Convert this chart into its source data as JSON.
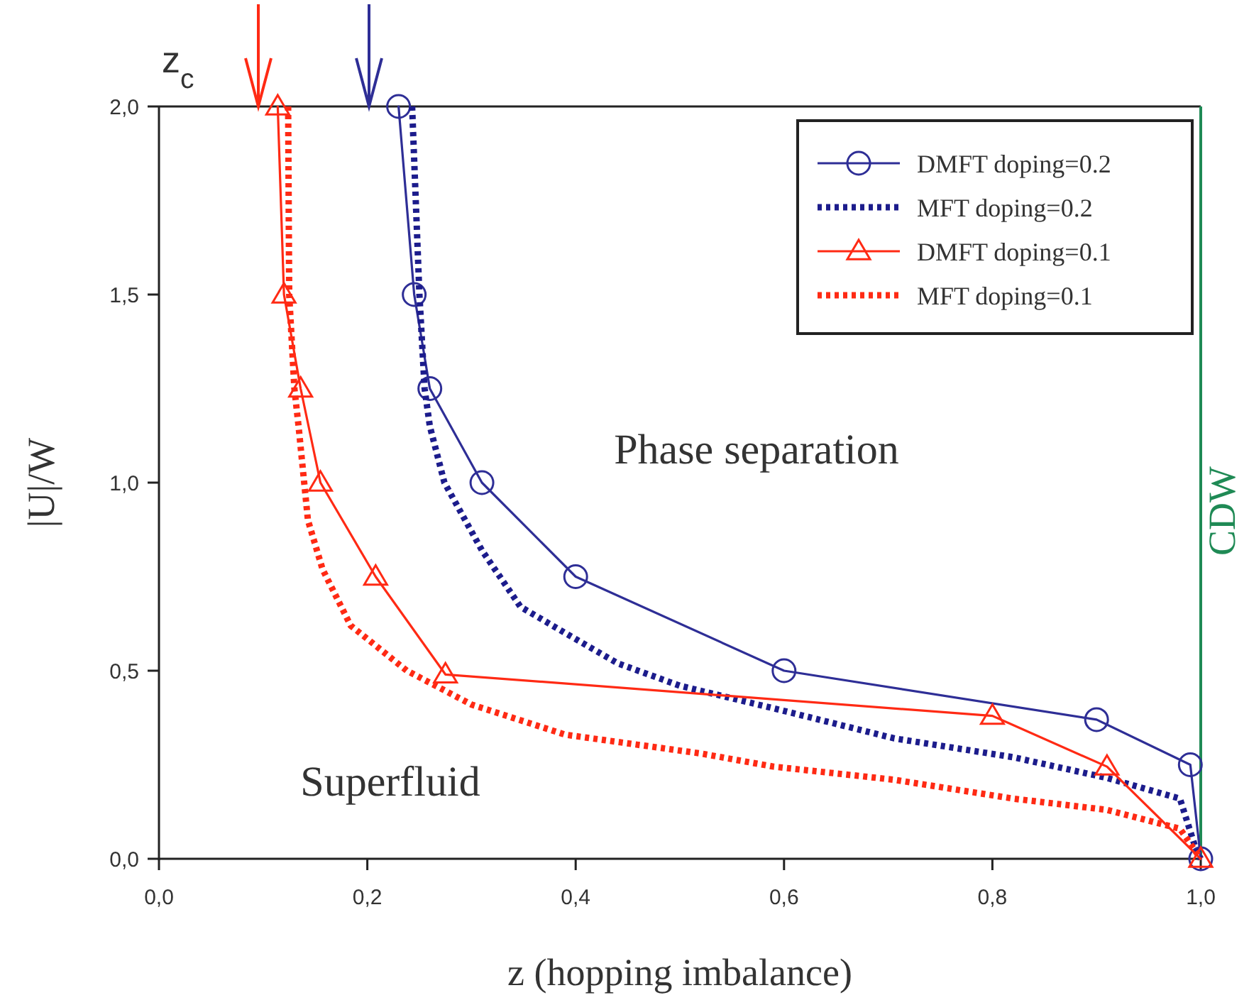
{
  "chart_data": {
    "type": "line",
    "xlabel": "z (hopping imbalance)",
    "ylabel": "|U|/W",
    "xlim": [
      0,
      1
    ],
    "ylim": [
      0,
      2
    ],
    "xticks": [
      {
        "value": 0,
        "label": "0,0"
      },
      {
        "value": 0.2,
        "label": "0,2"
      },
      {
        "value": 0.4,
        "label": "0,4"
      },
      {
        "value": 0.6,
        "label": "0,6"
      },
      {
        "value": 0.8,
        "label": "0,8"
      },
      {
        "value": 1,
        "label": "1,0"
      }
    ],
    "yticks": [
      {
        "value": 0,
        "label": "0,0"
      },
      {
        "value": 0.5,
        "label": "0,5"
      },
      {
        "value": 1,
        "label": "1,0"
      },
      {
        "value": 1.5,
        "label": "1,5"
      },
      {
        "value": 2,
        "label": "2,0"
      }
    ],
    "grid": false,
    "legend": "top right",
    "series": [
      {
        "name": "DMFT doping=0.2",
        "color": "#2e2e96",
        "marker": "circle",
        "line_style": "solid",
        "x": [
          0.23,
          0.245,
          0.26,
          0.31,
          0.4,
          0.6,
          0.9,
          0.99,
          1.0
        ],
        "values": [
          2,
          1.5,
          1.25,
          1.0,
          0.75,
          0.5,
          0.37,
          0.25,
          0
        ]
      },
      {
        "name": "MFT doping=0.2",
        "color": "#1c1c8c",
        "marker": "none",
        "line_style": "dotted",
        "x": [
          0.243,
          0.25,
          0.255,
          0.26,
          0.274,
          0.31,
          0.347,
          0.39,
          0.44,
          0.5,
          0.59,
          0.706,
          0.82,
          0.91,
          0.98,
          0.996,
          1.0
        ],
        "values": [
          2,
          1.5,
          1.25,
          1.15,
          1.0,
          0.82,
          0.67,
          0.6,
          0.52,
          0.46,
          0.4,
          0.32,
          0.27,
          0.215,
          0.16,
          0.02,
          0
        ]
      },
      {
        "name": "DMFT doping=0.1",
        "color": "#ff2a14",
        "marker": "triangle",
        "line_style": "solid",
        "x": [
          0.114,
          0.12,
          0.136,
          0.155,
          0.208,
          0.275,
          0.8,
          0.91,
          1.0
        ],
        "values": [
          2,
          1.5,
          1.25,
          1.0,
          0.75,
          0.49,
          0.38,
          0.245,
          0
        ]
      },
      {
        "name": "MFT doping=0.1",
        "color": "#ff2a14",
        "marker": "none",
        "line_style": "dotted",
        "x": [
          0.124,
          0.125,
          0.13,
          0.134,
          0.143,
          0.157,
          0.184,
          0.238,
          0.3,
          0.39,
          0.52,
          0.59,
          0.706,
          0.82,
          0.91,
          0.98,
          1.0
        ],
        "values": [
          2,
          1.5,
          1.25,
          1.15,
          0.9,
          0.77,
          0.62,
          0.5,
          0.41,
          0.33,
          0.28,
          0.245,
          0.21,
          0.16,
          0.13,
          0.08,
          0
        ]
      }
    ],
    "ref_lines": [
      {
        "axis": "x",
        "value": 1,
        "label": "CDW",
        "color": "#1f8a55"
      }
    ],
    "annotations": [
      "z$_{c}$",
      "Phase separation",
      "Superfluid"
    ]
  }
}
